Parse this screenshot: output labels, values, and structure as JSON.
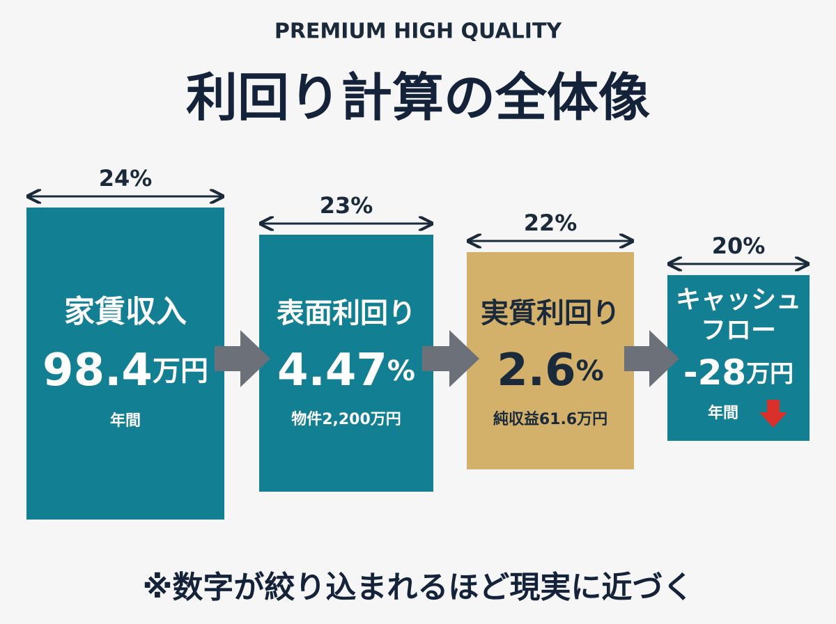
{
  "header": {
    "eyebrow": "PREMIUM HIGH QUALITY",
    "title": "利回り計算の全体像"
  },
  "cards": [
    {
      "percent": "24%",
      "title_lines": [
        "家賃収入"
      ],
      "value": "98.4",
      "unit": "万円",
      "note": "年間",
      "color": "#137f93"
    },
    {
      "percent": "23%",
      "title_lines": [
        "表面利回り"
      ],
      "value": "4.47",
      "unit": "%",
      "note": "物件2,200万円",
      "color": "#137f93"
    },
    {
      "percent": "22%",
      "title_lines": [
        "実質利回り"
      ],
      "value": "2.6",
      "unit": "%",
      "note": "純収益61.6万円",
      "color": "#d4b16b"
    },
    {
      "percent": "20%",
      "title_lines": [
        "キャッシュ",
        "フロー"
      ],
      "value": "-28",
      "unit": "万円",
      "note": "年間",
      "color": "#137f93"
    }
  ],
  "footer": "※数字が絞り込まれるほど現実に近づく"
}
